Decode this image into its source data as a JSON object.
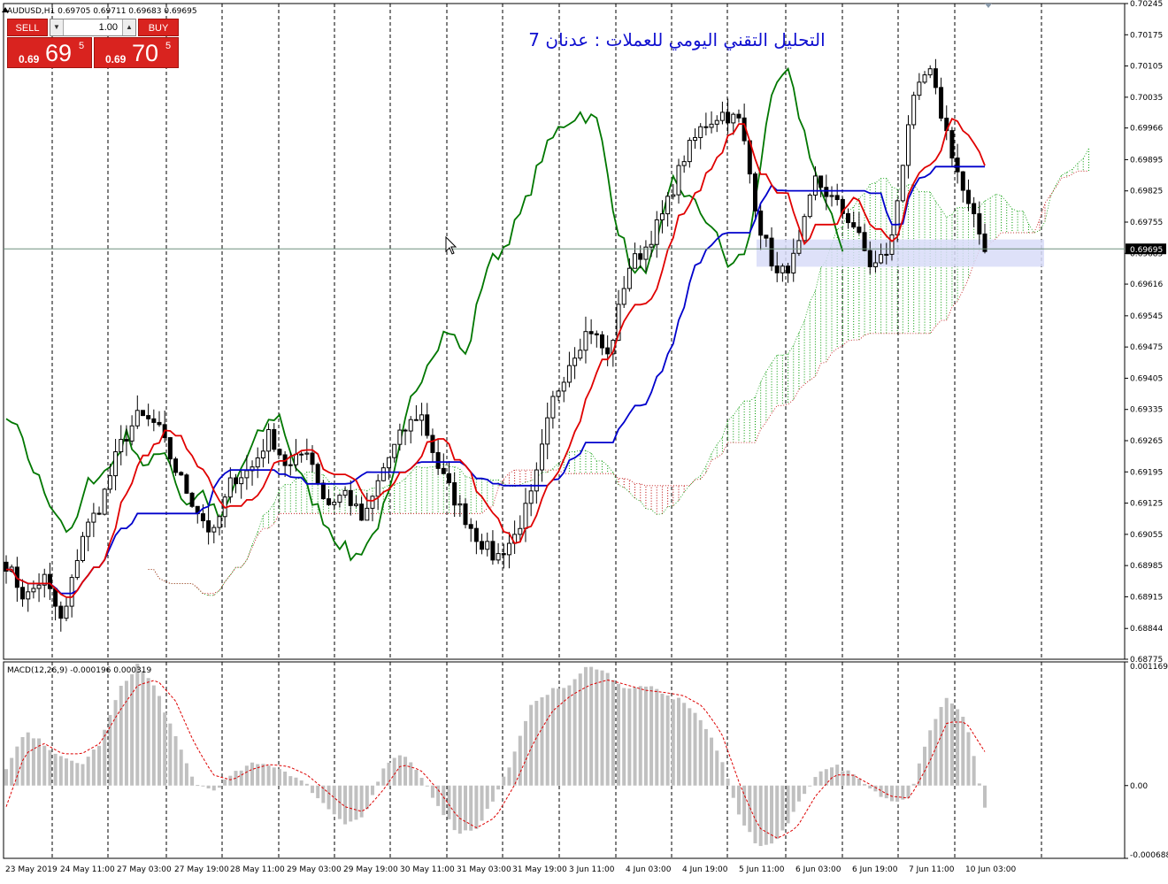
{
  "header": {
    "symbol_line": "AUDUSD,H1  0.69705 0.69711 0.69683 0.69695",
    "title_arabic": "التحليل التقني اليومي للعملات : عدنان 7"
  },
  "trade_panel": {
    "sell_label": "SELL",
    "buy_label": "BUY",
    "lot": "1.00",
    "sell_prefix": "0.69",
    "sell_big": "69",
    "sell_sup": "5",
    "buy_prefix": "0.69",
    "buy_big": "70",
    "buy_sup": "5"
  },
  "macd_label": "MACD(12,26,9) -0.000196 0.000319",
  "colors": {
    "candles": "#000000",
    "tenkan": "#e00000",
    "kijun": "#0000cc",
    "chikou": "#007700",
    "cloud_bull": "#009900",
    "cloud_bear": "#bb0000",
    "macd_hist": "#c0c0c0",
    "macd_signal": "#dd0000",
    "price_line": "#6e8f7e",
    "zone": "#d8dcf8"
  },
  "chart_data": [
    {
      "type": "candlestick",
      "symbol": "AUDUSD",
      "timeframe": "H1",
      "current_price": 0.69695,
      "ylim": [
        0.68775,
        0.70245
      ],
      "y_ticks": [
        0.70245,
        0.70175,
        0.70105,
        0.70035,
        0.69966,
        0.69895,
        0.69825,
        0.69755,
        0.69685,
        0.69616,
        0.69545,
        0.69475,
        0.69405,
        0.69335,
        0.69265,
        0.69195,
        0.69125,
        0.69055,
        0.68985,
        0.68915,
        0.68844,
        0.68775
      ],
      "y_tick_labels": [
        "0.70245",
        "0.70175",
        "0.70105",
        "0.70035",
        "0.69966",
        "0.69895",
        "0.69825",
        "0.69755",
        "0.69685",
        "0.69616",
        "0.69545",
        "0.69475",
        "0.69405",
        "0.69335",
        "0.69265",
        "0.69195",
        "0.69125",
        "0.69055",
        "0.68985",
        "0.68915",
        "0.68844",
        "0.68775"
      ],
      "x_labels": [
        "23 May 2019",
        "24 May 11:00",
        "27 May 03:00",
        "27 May 19:00",
        "28 May 11:00",
        "29 May 03:00",
        "29 May 19:00",
        "30 May 11:00",
        "31 May 03:00",
        "31 May 19:00",
        "3 Jun 11:00",
        "4 Jun 03:00",
        "4 Jun 19:00",
        "5 Jun 11:00",
        "6 Jun 03:00",
        "6 Jun 19:00",
        "7 Jun 11:00",
        "10 Jun 03:00"
      ],
      "indicators": [
        "Ichimoku Kinko Hyo",
        "MACD(12,26,9)"
      ],
      "price_keypoints": [
        0.6899,
        0.6891,
        0.6896,
        0.6885,
        0.6905,
        0.6912,
        0.6925,
        0.6932,
        0.693,
        0.692,
        0.6912,
        0.6905,
        0.6918,
        0.692,
        0.6928,
        0.692,
        0.6925,
        0.6912,
        0.6915,
        0.6908,
        0.692,
        0.6928,
        0.6933,
        0.692,
        0.6912,
        0.6905,
        0.69,
        0.6905,
        0.6915,
        0.6935,
        0.6945,
        0.6952,
        0.6945,
        0.6965,
        0.697,
        0.6978,
        0.699,
        0.6997,
        0.7,
        0.6998,
        0.6975,
        0.6963,
        0.6968,
        0.6985,
        0.698,
        0.6975,
        0.6965,
        0.697,
        0.7,
        0.701,
        0.6995,
        0.698,
        0.697
      ]
    },
    {
      "type": "histogram",
      "name": "MACD(12,26,9)",
      "main_value": -0.000196,
      "signal_value": 0.000319,
      "ylim": [
        -0.000688,
        0.001169
      ],
      "y_tick_labels": [
        "0.001169",
        "0.00",
        "-0.000688"
      ],
      "hist_keypoints": [
        0.00015,
        0.0005,
        0.0004,
        0.00025,
        0.0002,
        0.0004,
        0.0009,
        0.00115,
        0.0009,
        0.00045,
        3e-05,
        -5e-05,
        0.0001,
        0.0002,
        0.0002,
        0.00012,
        0.0,
        -0.0002,
        -0.00035,
        -0.0003,
        0.00015,
        0.0003,
        0.0001,
        -0.0002,
        -0.00045,
        -0.0004,
        -0.0001,
        0.0003,
        0.0008,
        0.0009,
        0.00095,
        0.00115,
        0.00105,
        0.0009,
        0.00095,
        0.00085,
        0.0008,
        0.0006,
        0.00025,
        -0.0003,
        -0.0006,
        -0.0005,
        -0.0002,
        0.0001,
        0.0002,
        0.0001,
        -5e-05,
        -0.00015,
        -0.0001,
        0.0005,
        0.00085,
        0.0006,
        -0.0002
      ],
      "signal_keypoints": [
        -0.0002,
        0.0003,
        0.0004,
        0.0003,
        0.0003,
        0.0004,
        0.0007,
        0.00095,
        0.001,
        0.0008,
        0.0004,
        0.0001,
        5e-05,
        0.00015,
        0.0002,
        0.00018,
        0.0001,
        -5e-05,
        -0.0002,
        -0.00025,
        -5e-05,
        0.0002,
        0.00015,
        -5e-05,
        -0.0003,
        -0.0004,
        -0.0003,
        0.0,
        0.0004,
        0.0007,
        0.00085,
        0.00095,
        0.001,
        0.00095,
        0.0009,
        0.00088,
        0.00085,
        0.00075,
        0.0005,
        0.0,
        -0.0004,
        -0.0005,
        -0.0004,
        -0.0001,
        0.0001,
        0.0001,
        0.0,
        -0.0001,
        -0.00012,
        0.0002,
        0.0006,
        0.0006,
        0.00032
      ]
    }
  ]
}
